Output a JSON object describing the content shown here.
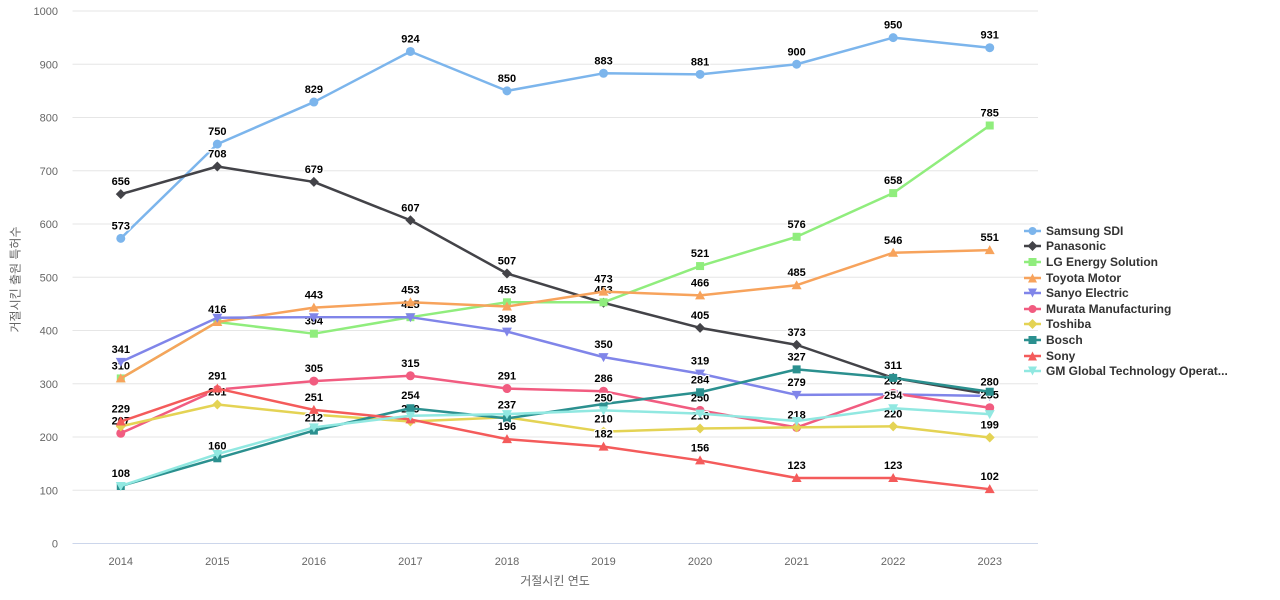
{
  "chart_data": {
    "type": "line",
    "title": "",
    "xlabel": "거절시킨 연도",
    "ylabel": "거절시킨 출원 특허수",
    "categories": [
      "2014",
      "2015",
      "2016",
      "2017",
      "2018",
      "2019",
      "2020",
      "2021",
      "2022",
      "2023"
    ],
    "ylim": [
      0,
      1000
    ],
    "ytick_step": 100,
    "yticks": [
      0,
      100,
      200,
      300,
      400,
      500,
      600,
      700,
      800,
      900,
      1000
    ],
    "grid": "horizontal",
    "legend_position": "right",
    "series": [
      {
        "name": "Samsung SDI",
        "color": "#7cb5ec",
        "marker": "circle",
        "values": [
          573,
          750,
          829,
          924,
          850,
          883,
          881,
          900,
          950,
          931
        ],
        "labels": [
          573,
          750,
          829,
          924,
          850,
          883,
          881,
          900,
          950,
          931
        ]
      },
      {
        "name": "Panasonic",
        "color": "#434348",
        "marker": "diamond",
        "values": [
          656,
          708,
          679,
          607,
          507,
          452,
          405,
          373,
          311,
          280
        ],
        "labels": [
          656,
          708,
          679,
          607,
          507,
          null,
          405,
          373,
          null,
          280
        ]
      },
      {
        "name": "LG Energy Solution",
        "color": "#90ed7d",
        "marker": "square",
        "values": [
          310,
          416,
          394,
          425,
          453,
          453,
          521,
          576,
          658,
          785
        ],
        "labels": [
          310,
          416,
          394,
          425,
          453,
          453,
          521,
          576,
          658,
          785
        ]
      },
      {
        "name": "Toyota Motor",
        "color": "#f7a35c",
        "marker": "triangle",
        "values": [
          310,
          416,
          443,
          453,
          445,
          473,
          466,
          485,
          546,
          551
        ],
        "labels": [
          null,
          null,
          443,
          453,
          null,
          473,
          466,
          485,
          546,
          551
        ]
      },
      {
        "name": "Sanyo Electric",
        "color": "#8085e9",
        "marker": "triangle-down",
        "values": [
          341,
          424,
          425,
          425,
          398,
          350,
          319,
          279,
          280,
          277
        ],
        "labels": [
          341,
          null,
          null,
          null,
          398,
          350,
          319,
          279,
          null,
          null
        ]
      },
      {
        "name": "Murata Manufacturing",
        "color": "#f15c80",
        "marker": "circle",
        "values": [
          207,
          289,
          305,
          315,
          291,
          286,
          250,
          218,
          282,
          255
        ],
        "labels": [
          207,
          null,
          305,
          315,
          291,
          286,
          250,
          null,
          282,
          255
        ]
      },
      {
        "name": "Toshiba",
        "color": "#e4d354",
        "marker": "diamond",
        "values": [
          220,
          261,
          242,
          229,
          237,
          210,
          216,
          218,
          220,
          199
        ],
        "labels": [
          null,
          261,
          null,
          229,
          237,
          210,
          216,
          218,
          220,
          199
        ]
      },
      {
        "name": "Bosch",
        "color": "#2b908f",
        "marker": "square",
        "values": [
          108,
          160,
          212,
          254,
          235,
          262,
          284,
          327,
          311,
          285
        ],
        "labels": [
          108,
          160,
          212,
          254,
          null,
          null,
          284,
          327,
          311,
          null
        ]
      },
      {
        "name": "Sony",
        "color": "#f45b5b",
        "marker": "triangle",
        "values": [
          229,
          291,
          251,
          233,
          196,
          182,
          156,
          123,
          123,
          102
        ],
        "labels": [
          229,
          291,
          251,
          null,
          196,
          182,
          156,
          123,
          123,
          102
        ]
      },
      {
        "name": "GM Global Technology Operat...",
        "color": "#91e8e1",
        "marker": "triangle-down",
        "values": [
          108,
          168,
          218,
          240,
          243,
          250,
          244,
          230,
          254,
          243
        ],
        "labels": [
          null,
          null,
          null,
          null,
          null,
          250,
          null,
          null,
          254,
          null
        ]
      }
    ],
    "colors": {
      "grid_line": "#e6e6e6",
      "axis_line": "#ccd6eb",
      "tick_label": "#666666",
      "data_label": "#000000",
      "legend_text": "#333333",
      "background": "#ffffff"
    }
  },
  "axis": {
    "x_title": "거절시킨 연도",
    "y_title": "거절시킨 출원 특허수"
  }
}
